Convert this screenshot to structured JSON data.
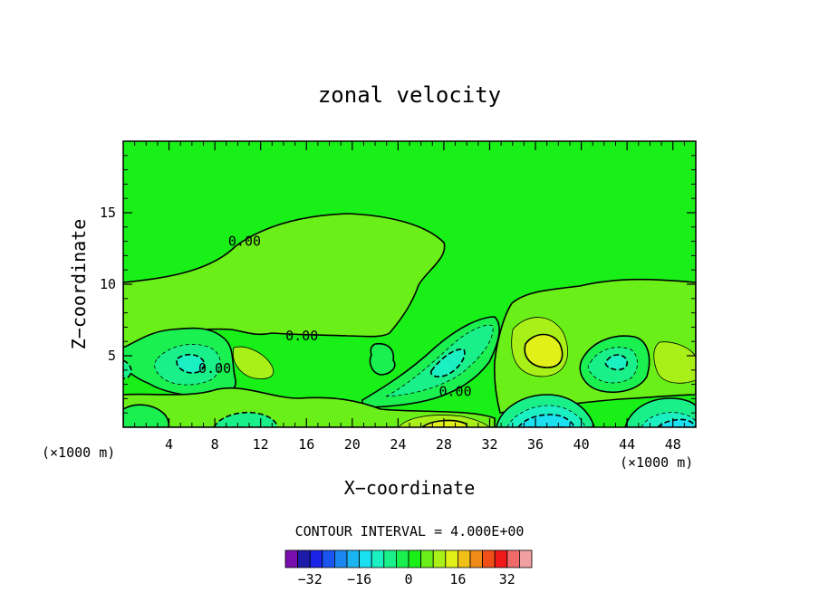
{
  "chart_data": {
    "type": "heatmap",
    "title": "zonal velocity",
    "xlabel": "X−coordinate",
    "ylabel": "Z−coordinate",
    "x_units": "(×1000 m)",
    "xlim": [
      0,
      50
    ],
    "ylim": [
      0,
      20
    ],
    "x_ticks": [
      4,
      8,
      12,
      16,
      20,
      24,
      28,
      32,
      36,
      40,
      44,
      48
    ],
    "y_ticks": [
      5,
      10,
      15
    ],
    "x_tick_labels": [
      "4",
      "8",
      "12",
      "16",
      "20",
      "24",
      "28",
      "32",
      "36",
      "40",
      "44",
      "48"
    ],
    "y_tick_labels": [
      "5",
      "10",
      "15"
    ],
    "contour_interval_text": "CONTOUR INTERVAL = 4.000E+00",
    "contour_interval": 4.0,
    "contour_labels": [
      {
        "text": "0.00",
        "x": 10.6,
        "y": 13.0
      },
      {
        "text": "0.00",
        "x": 15.6,
        "y": 6.4
      },
      {
        "text": "0.00",
        "x": 8.0,
        "y": 4.1
      },
      {
        "text": "0.00",
        "x": 29.0,
        "y": 2.5
      }
    ],
    "colorbar": {
      "levels": [
        -36,
        -32,
        -28,
        -24,
        -20,
        -16,
        -12,
        -8,
        -4,
        0,
        4,
        8,
        12,
        16,
        20,
        24,
        28,
        32,
        36
      ],
      "colors": [
        "#7a0fb0",
        "#1c1ca8",
        "#1a23e6",
        "#1a55f0",
        "#1a88f0",
        "#1ab5f0",
        "#1ae0f0",
        "#1af0c2",
        "#1af08a",
        "#1af050",
        "#18f018",
        "#6af018",
        "#a8f018",
        "#e0f018",
        "#f0c018",
        "#f08a18",
        "#f05018",
        "#f01818",
        "#f06a6a",
        "#f0a0a0"
      ],
      "tick_labels": [
        "−32",
        "−16",
        "0",
        "16",
        "32"
      ],
      "tick_values": [
        -32,
        -16,
        0,
        16,
        32
      ]
    },
    "colors": {
      "background_zero": "#18f018",
      "light_positive": "#6af018",
      "mid_positive": "#a8f018",
      "strong_positive": "#e0f018",
      "light_negative": "#1af050",
      "mid_negative": "#1af08a",
      "strong_negative": "#1af0c2",
      "deeper_negative": "#1ae0f0",
      "deepest_negative": "#1ab5f0"
    }
  }
}
